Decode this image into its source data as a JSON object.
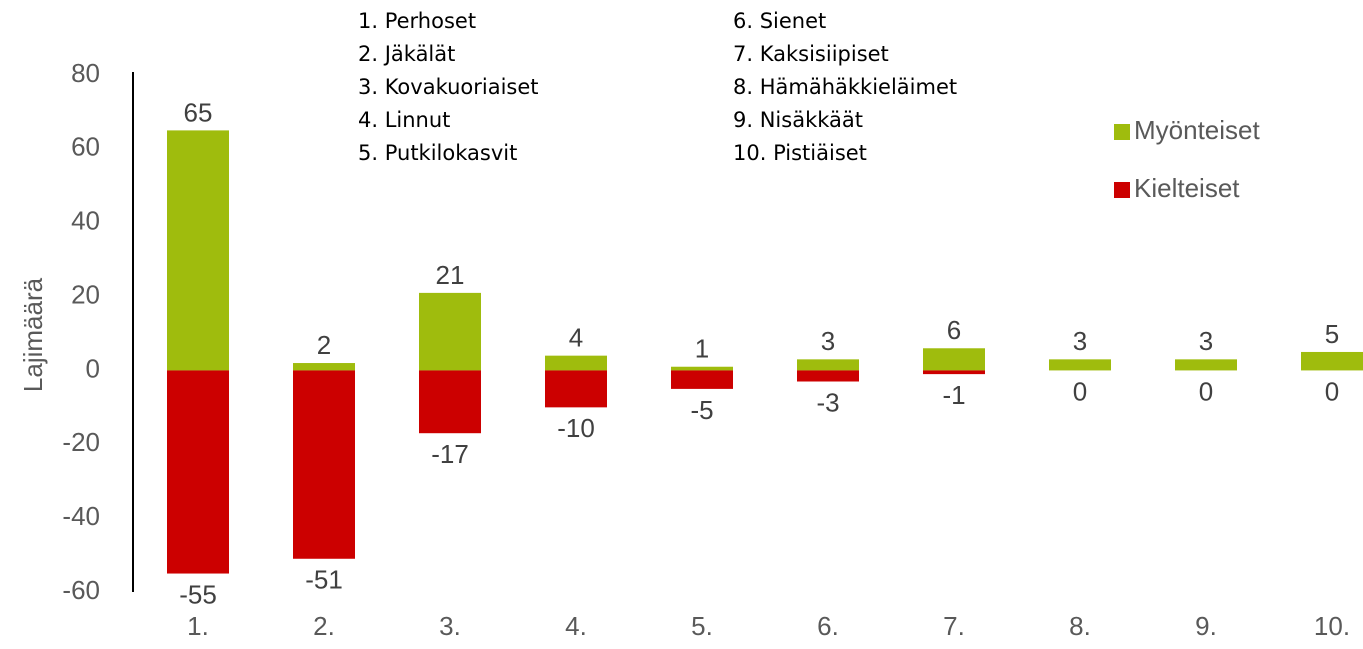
{
  "chart_data": {
    "type": "bar",
    "y_label": "Lajimäärä",
    "categories": [
      "1.",
      "2.",
      "3.",
      "4.",
      "5.",
      "6.",
      "7.",
      "8.",
      "9.",
      "10."
    ],
    "series": [
      {
        "name": "Myönteiset",
        "color": "#9fbc0d",
        "values": [
          65,
          2,
          21,
          4,
          1,
          3,
          6,
          3,
          3,
          5
        ]
      },
      {
        "name": "Kielteiset",
        "color": "#cc0000",
        "values": [
          -55,
          -51,
          -17,
          -10,
          -5,
          -3,
          -1,
          0,
          0,
          0
        ]
      }
    ],
    "ylim": [
      -60,
      80
    ],
    "yticks": [
      -60,
      -40,
      -20,
      0,
      20,
      40,
      60,
      80
    ],
    "grid": false,
    "legend": "right",
    "annotations": [
      "1. Perhoset",
      "2. Jäkälät",
      "3. Kovakuoriaiset",
      "4. Linnut",
      "5. Putkilokasvit",
      "6. Sienet",
      "7. Kaksisiipiset",
      "8. Hämähäkkieläimet",
      "9. Nisäkkäät",
      "10. Pistiäiset"
    ]
  }
}
